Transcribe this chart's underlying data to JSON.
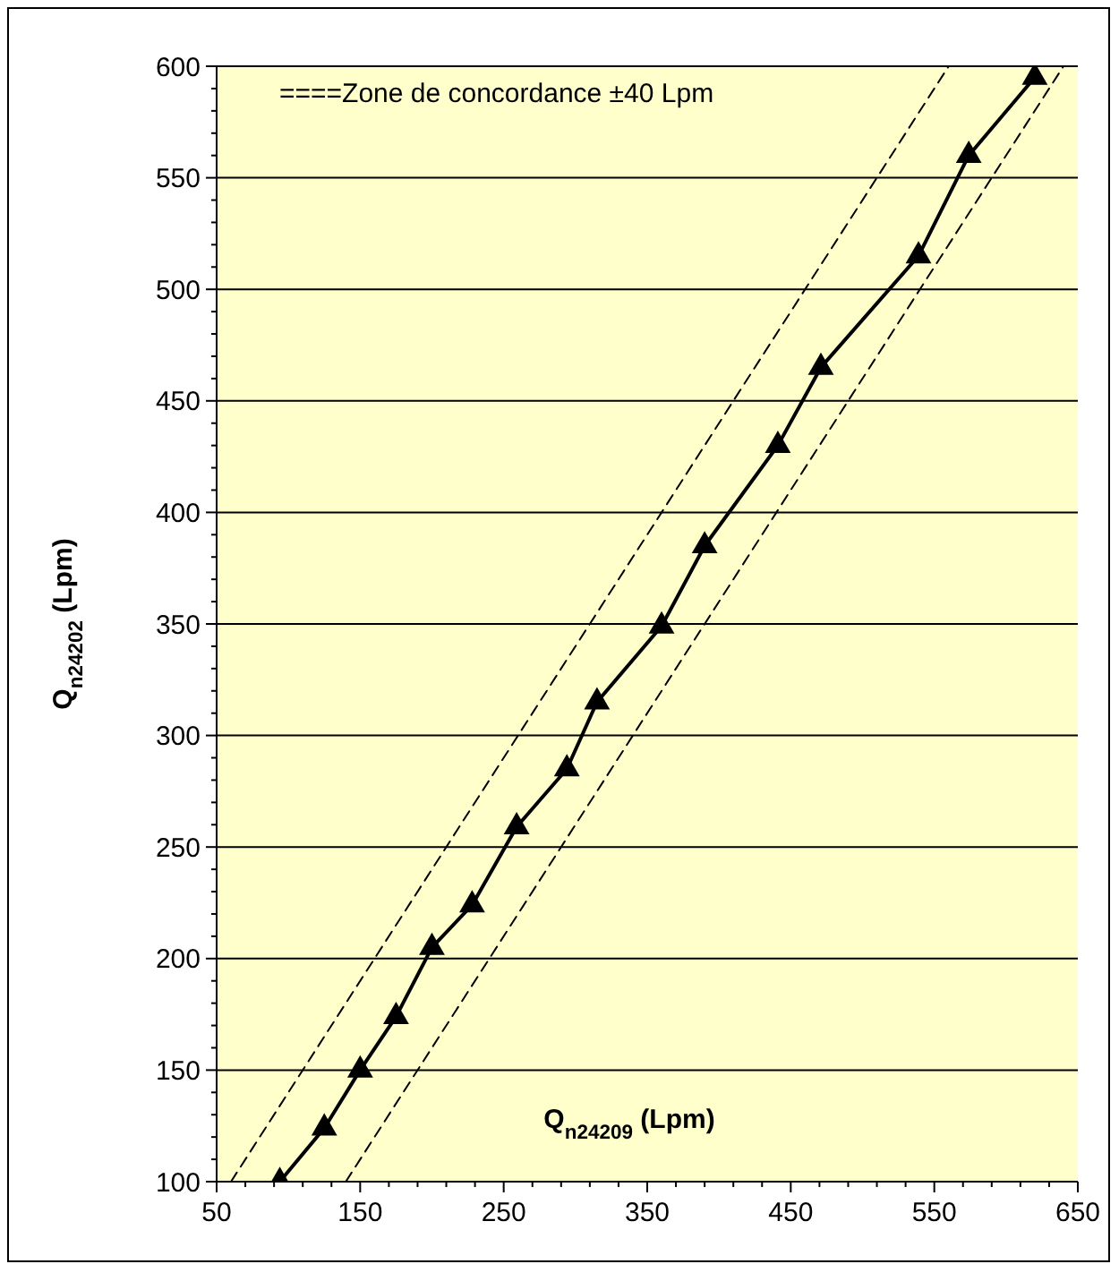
{
  "chart_data": {
    "type": "line",
    "xlabel": "Q$_{n24209}$ (Lpm)",
    "ylabel": "Q$_{n24202}$ (Lpm)",
    "annotations": [
      "====Zone de concordance ±40 Lpm"
    ],
    "xlim": [
      50,
      650
    ],
    "ylim": [
      100,
      600
    ],
    "xticks": [
      50,
      {
        "value": 70,
        "label": null
      },
      {
        "value": 90,
        "label": null
      },
      {
        "value": 110,
        "label": null
      },
      {
        "value": 130,
        "label": null
      },
      150,
      {
        "value": 170,
        "label": null
      },
      {
        "value": 190,
        "label": null
      },
      {
        "value": 210,
        "label": null
      },
      {
        "value": 230,
        "label": null
      },
      250,
      {
        "value": 270,
        "label": null
      },
      {
        "value": 290,
        "label": null
      },
      {
        "value": 310,
        "label": null
      },
      {
        "value": 330,
        "label": null
      },
      350,
      {
        "value": 370,
        "label": null
      },
      {
        "value": 390,
        "label": null
      },
      {
        "value": 410,
        "label": null
      },
      {
        "value": 430,
        "label": null
      },
      450,
      {
        "value": 470,
        "label": null
      },
      {
        "value": 490,
        "label": null
      },
      {
        "value": 510,
        "label": null
      },
      {
        "value": 530,
        "label": null
      },
      550,
      {
        "value": 570,
        "label": null
      },
      {
        "value": 590,
        "label": null
      },
      {
        "value": 610,
        "label": null
      },
      {
        "value": 630,
        "label": null
      },
      650
    ],
    "yticks": [
      100,
      {
        "value": 110,
        "label": null
      },
      {
        "value": 120,
        "label": null
      },
      {
        "value": 130,
        "label": null
      },
      {
        "value": 140,
        "label": null
      },
      150,
      {
        "value": 160,
        "label": null
      },
      {
        "value": 170,
        "label": null
      },
      {
        "value": 180,
        "label": null
      },
      {
        "value": 190,
        "label": null
      },
      200,
      {
        "value": 210,
        "label": null
      },
      {
        "value": 220,
        "label": null
      },
      {
        "value": 230,
        "label": null
      },
      {
        "value": 240,
        "label": null
      },
      250,
      {
        "value": 260,
        "label": null
      },
      {
        "value": 270,
        "label": null
      },
      {
        "value": 280,
        "label": null
      },
      {
        "value": 290,
        "label": null
      },
      300,
      {
        "value": 310,
        "label": null
      },
      {
        "value": 320,
        "label": null
      },
      {
        "value": 330,
        "label": null
      },
      {
        "value": 340,
        "label": null
      },
      350,
      {
        "value": 360,
        "label": null
      },
      {
        "value": 370,
        "label": null
      },
      {
        "value": 380,
        "label": null
      },
      {
        "value": 390,
        "label": null
      },
      400,
      {
        "value": 410,
        "label": null
      },
      {
        "value": 420,
        "label": null
      },
      {
        "value": 430,
        "label": null
      },
      {
        "value": 440,
        "label": null
      },
      450,
      {
        "value": 460,
        "label": null
      },
      {
        "value": 470,
        "label": null
      },
      {
        "value": 480,
        "label": null
      },
      {
        "value": 490,
        "label": null
      },
      500,
      {
        "value": 510,
        "label": null
      },
      {
        "value": 520,
        "label": null
      },
      {
        "value": 530,
        "label": null
      },
      {
        "value": 540,
        "label": null
      },
      550,
      {
        "value": 560,
        "label": null
      },
      {
        "value": 570,
        "label": null
      },
      {
        "value": 580,
        "label": null
      },
      {
        "value": 590,
        "label": null
      },
      600
    ],
    "grid": "y",
    "series": [
      {
        "color": "#000000",
        "marker": "triangle",
        "line_style": "solid",
        "x": [
          94,
          125,
          150,
          175,
          200,
          228,
          259,
          294,
          315,
          360,
          390,
          441,
          471,
          539,
          574,
          620
        ],
        "values": [
          100,
          124,
          150,
          174,
          205,
          224,
          259,
          285,
          315,
          349,
          385,
          430,
          465,
          515,
          560,
          595
        ]
      },
      {
        "color": "#000000",
        "marker": "none",
        "line_style": "dashed",
        "x": [
          60,
          560
        ],
        "values": [
          100,
          600
        ]
      },
      {
        "color": "#000000",
        "marker": "none",
        "line_style": "dashed",
        "x": [
          140,
          640
        ],
        "values": [
          100,
          600
        ]
      }
    ]
  }
}
